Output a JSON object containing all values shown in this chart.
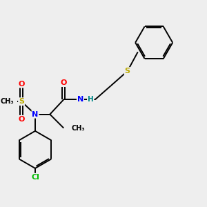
{
  "background_color": "#eeeeee",
  "bond_color": "#000000",
  "atom_colors": {
    "O": "#ff0000",
    "N": "#0000ff",
    "S": "#bbaa00",
    "Cl": "#00bb00",
    "C": "#000000",
    "H": "#008888"
  },
  "figsize": [
    3.0,
    3.0
  ],
  "dpi": 100,
  "lw": 1.4,
  "fontsize": 7.5
}
